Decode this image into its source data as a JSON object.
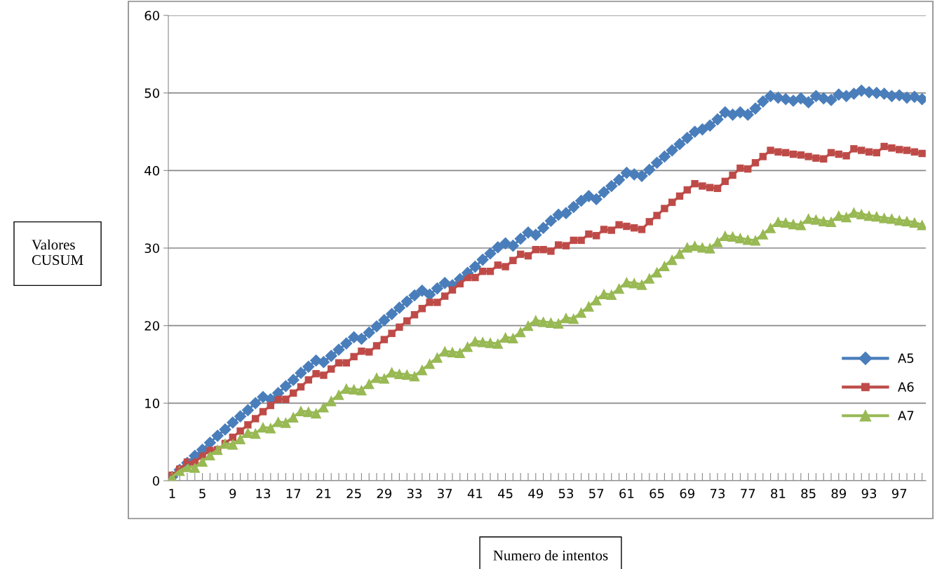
{
  "chart_data": {
    "type": "line",
    "xlabel": "Numero de intentos",
    "ylabel": "Valores\nCUSUM",
    "categories": [
      "1",
      null,
      null,
      null,
      "5",
      null,
      null,
      null,
      "9",
      null,
      null,
      null,
      "13",
      null,
      null,
      null,
      "17",
      null,
      null,
      null,
      "21",
      null,
      null,
      null,
      "25",
      null,
      null,
      null,
      "29",
      null,
      null,
      null,
      "33",
      null,
      null,
      null,
      "37",
      null,
      null,
      null,
      "41",
      null,
      null,
      null,
      "45",
      null,
      null,
      null,
      "49",
      null,
      null,
      null,
      "53",
      null,
      null,
      null,
      "57",
      null,
      null,
      null,
      "61",
      null,
      null,
      null,
      "65",
      null,
      null,
      null,
      "69",
      null,
      null,
      null,
      "73",
      null,
      null,
      null,
      "77",
      null,
      null,
      null,
      "81",
      null,
      null,
      null,
      "85",
      null,
      null,
      null,
      "89",
      null,
      null,
      null,
      "93",
      null,
      null,
      null,
      "97",
      null,
      null,
      null
    ],
    "ylim": [
      0,
      60
    ],
    "yticks": [
      0,
      10,
      20,
      30,
      40,
      50,
      60
    ],
    "grid": "y",
    "legend": "right",
    "series": [
      {
        "name": "A5",
        "color": "#4a7ebb",
        "marker": "diamond",
        "values": [
          0.5,
          1.4,
          2.3,
          3.2,
          4.0,
          4.9,
          5.8,
          6.6,
          7.5,
          8.3,
          9.1,
          10.0,
          10.8,
          10.5,
          11.3,
          12.2,
          13.0,
          13.9,
          14.7,
          15.5,
          15.3,
          16.1,
          16.9,
          17.7,
          18.5,
          18.3,
          19.1,
          19.9,
          20.7,
          21.5,
          22.3,
          23.1,
          23.9,
          24.5,
          24.0,
          24.8,
          25.5,
          25.2,
          26.0,
          26.8,
          27.6,
          28.5,
          29.3,
          30.1,
          30.6,
          30.3,
          31.2,
          32.0,
          31.7,
          32.6,
          33.5,
          34.3,
          34.5,
          35.3,
          36.1,
          36.7,
          36.3,
          37.2,
          38.0,
          38.8,
          39.7,
          39.5,
          39.3,
          40.1,
          41.0,
          41.8,
          42.6,
          43.4,
          44.2,
          45.0,
          45.3,
          45.8,
          46.6,
          47.5,
          47.2,
          47.5,
          47.2,
          48.0,
          48.9,
          49.6,
          49.4,
          49.2,
          49.0,
          49.3,
          48.8,
          49.6,
          49.3,
          49.1,
          49.8,
          49.6,
          49.9,
          50.3,
          50.1,
          50.0,
          49.9,
          49.6,
          49.7,
          49.4,
          49.5,
          49.2
        ]
      },
      {
        "name": "A6",
        "color": "#be4b48",
        "marker": "square",
        "values": [
          0.7,
          1.5,
          2.4,
          2.4,
          3.2,
          3.9,
          4.0,
          4.8,
          5.6,
          6.4,
          7.2,
          8.0,
          8.9,
          9.7,
          10.5,
          10.5,
          11.3,
          12.1,
          13.0,
          13.8,
          13.6,
          14.4,
          15.2,
          15.2,
          16.0,
          16.7,
          16.6,
          17.4,
          18.2,
          19.0,
          19.8,
          20.6,
          21.4,
          22.2,
          23.0,
          23.0,
          23.8,
          24.6,
          25.4,
          26.2,
          26.2,
          27.0,
          27.0,
          27.8,
          27.6,
          28.4,
          29.2,
          29.0,
          29.8,
          29.8,
          29.6,
          30.4,
          30.3,
          31.0,
          31.0,
          31.8,
          31.6,
          32.4,
          32.3,
          33.0,
          32.8,
          32.6,
          32.4,
          33.4,
          34.2,
          35.1,
          35.9,
          36.7,
          37.5,
          38.3,
          38.0,
          37.8,
          37.7,
          38.6,
          39.4,
          40.3,
          40.2,
          41.0,
          41.8,
          42.6,
          42.4,
          42.3,
          42.1,
          42.0,
          41.8,
          41.6,
          41.5,
          42.3,
          42.1,
          41.9,
          42.8,
          42.6,
          42.4,
          42.3,
          43.1,
          42.9,
          42.7,
          42.6,
          42.4,
          42.2
        ]
      },
      {
        "name": "A7",
        "color": "#98b954",
        "marker": "triangle",
        "values": [
          0.5,
          1.3,
          1.8,
          1.7,
          2.5,
          3.3,
          4.0,
          4.8,
          4.7,
          5.4,
          6.2,
          6.1,
          6.9,
          6.8,
          7.6,
          7.5,
          8.2,
          9.0,
          8.9,
          8.7,
          9.5,
          10.3,
          11.1,
          11.9,
          11.8,
          11.7,
          12.5,
          13.3,
          13.2,
          14.0,
          13.8,
          13.7,
          13.5,
          14.3,
          15.1,
          15.9,
          16.7,
          16.6,
          16.5,
          17.3,
          18.0,
          17.9,
          17.8,
          17.7,
          18.5,
          18.4,
          19.2,
          20.0,
          20.7,
          20.5,
          20.4,
          20.3,
          21.0,
          20.9,
          21.7,
          22.5,
          23.3,
          24.1,
          24.0,
          24.8,
          25.6,
          25.5,
          25.3,
          26.1,
          26.9,
          27.7,
          28.5,
          29.3,
          30.1,
          30.3,
          30.1,
          30.0,
          30.8,
          31.6,
          31.5,
          31.3,
          31.1,
          31.0,
          31.8,
          32.6,
          33.4,
          33.3,
          33.1,
          33.0,
          33.8,
          33.7,
          33.5,
          33.4,
          34.2,
          34.0,
          34.6,
          34.4,
          34.2,
          34.1,
          33.9,
          33.8,
          33.6,
          33.5,
          33.3,
          33.0
        ]
      }
    ]
  }
}
